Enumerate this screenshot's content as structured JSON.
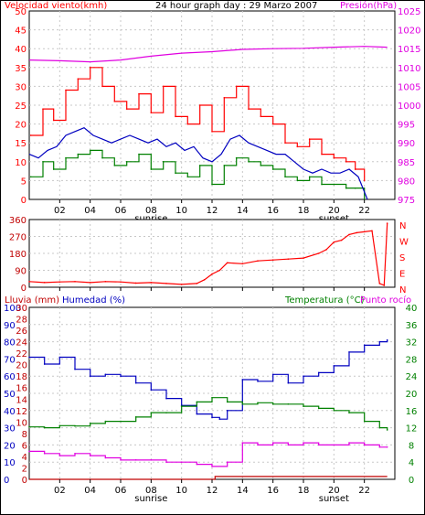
{
  "chart_data": [
    {
      "type": "line",
      "title": "24 hour graph day : 29 Marzo 2007",
      "ylabel_left": "Velocidad viento(kmh)",
      "ylabel_right": "Presión(hPa)",
      "x_ticks": [
        "02",
        "04",
        "06",
        "08",
        "10",
        "12",
        "14",
        "16",
        "18",
        "20",
        "22"
      ],
      "x_notes": [
        "sunrise",
        "sunset"
      ],
      "y_left_ticks": [
        "0",
        "5",
        "10",
        "15",
        "20",
        "25",
        "30",
        "35",
        "40",
        "45",
        "50"
      ],
      "y_right_ticks": [
        "975",
        "980",
        "985",
        "990",
        "995",
        "1000",
        "1005",
        "1010",
        "1015",
        "1020",
        "1025"
      ],
      "ylim_left": [
        0,
        50
      ],
      "ylim_right": [
        975,
        1025
      ],
      "colors": {
        "gust": "#ff0000",
        "average": "#008000",
        "direction_avg": "#0000c0",
        "pressure": "#e000e0"
      },
      "series": [
        {
          "name": "gust",
          "x": [
            0.1,
            0.9,
            1.6,
            2.4,
            3.2,
            4.0,
            4.8,
            5.6,
            6.4,
            7.2,
            8.0,
            8.8,
            9.6,
            10.4,
            11.2,
            12.0,
            12.8,
            13.6,
            14.4,
            15.2,
            16.0,
            16.8,
            17.6,
            18.4,
            19.2,
            20.0,
            20.8,
            21.4,
            22.0
          ],
          "y": [
            17,
            24,
            21,
            29,
            32,
            35,
            30,
            26,
            24,
            28,
            23,
            30,
            22,
            20,
            25,
            18,
            27,
            30,
            24,
            22,
            20,
            15,
            14,
            16,
            12,
            11,
            10,
            8,
            5
          ]
        },
        {
          "name": "average",
          "x": [
            0.1,
            0.9,
            1.6,
            2.4,
            3.2,
            4.0,
            4.8,
            5.6,
            6.4,
            7.2,
            8.0,
            8.8,
            9.6,
            10.4,
            11.2,
            12.0,
            12.8,
            13.6,
            14.4,
            15.2,
            16.0,
            16.8,
            17.6,
            18.4,
            19.2,
            20.0,
            20.8,
            21.4,
            22.0
          ],
          "y": [
            6,
            10,
            8,
            11,
            12,
            13,
            11,
            9,
            10,
            12,
            8,
            10,
            7,
            6,
            9,
            4,
            9,
            11,
            10,
            9,
            8,
            6,
            5,
            6,
            4,
            4,
            3,
            3,
            0
          ]
        },
        {
          "name": "wind_avg_line",
          "x": [
            0.0,
            0.6,
            1.2,
            1.8,
            2.4,
            3.0,
            3.6,
            4.2,
            4.8,
            5.4,
            6.0,
            6.6,
            7.2,
            7.8,
            8.4,
            9.0,
            9.6,
            10.2,
            10.8,
            11.4,
            12.0,
            12.6,
            13.2,
            13.8,
            14.4,
            15.0,
            15.6,
            16.2,
            16.8,
            17.4,
            18.0,
            18.6,
            19.2,
            19.8,
            20.4,
            21.0,
            21.6,
            22.2
          ],
          "y": [
            12,
            11,
            13,
            14,
            17,
            18,
            19,
            17,
            16,
            15,
            16,
            17,
            16,
            15,
            16,
            14,
            15,
            13,
            14,
            11,
            10,
            12,
            16,
            17,
            15,
            14,
            13,
            12,
            12,
            10,
            8,
            7,
            8,
            7,
            7,
            8,
            6,
            0
          ]
        },
        {
          "name": "pressure",
          "x": [
            0,
            2,
            4,
            6,
            8,
            10,
            12,
            14,
            16,
            18,
            20,
            22,
            23.5
          ],
          "y": [
            1012.0,
            1011.8,
            1011.5,
            1012.0,
            1013.0,
            1013.8,
            1014.2,
            1014.8,
            1015.0,
            1015.1,
            1015.4,
            1015.6,
            1015.4
          ]
        }
      ]
    },
    {
      "type": "line",
      "title": "",
      "ylabel_left": "",
      "y_left_ticks": [
        "0",
        "90",
        "180",
        "270",
        "360"
      ],
      "y_right_labels": [
        "N",
        "W",
        "S",
        "E",
        "N"
      ],
      "ylim_left": [
        0,
        360
      ],
      "series": [
        {
          "name": "direction",
          "x": [
            0,
            1,
            2,
            3,
            4,
            5,
            6,
            7,
            8,
            9,
            10,
            11,
            11.5,
            12,
            12.5,
            13,
            14,
            15,
            16,
            17,
            18,
            19,
            19.5,
            20,
            20.5,
            21,
            21.5,
            22,
            22.5,
            23,
            23.3,
            23.5
          ],
          "y": [
            30,
            25,
            28,
            30,
            25,
            30,
            28,
            22,
            25,
            20,
            15,
            20,
            40,
            70,
            90,
            130,
            125,
            140,
            145,
            150,
            155,
            180,
            200,
            240,
            250,
            280,
            290,
            295,
            300,
            20,
            10,
            340
          ]
        }
      ]
    },
    {
      "type": "line",
      "title": "",
      "ylabel_left": "Lluvia (mm)",
      "ylabel_left2": "Humedad (%)",
      "ylabel_right": "Temperatura (°C)",
      "ylabel_right2": "Punto rocío",
      "x_ticks": [
        "02",
        "04",
        "06",
        "08",
        "10",
        "12",
        "14",
        "16",
        "18",
        "20",
        "22"
      ],
      "x_notes": [
        "sunrise",
        "sunset"
      ],
      "y_left_ticks_rain": [
        "0",
        "2",
        "4",
        "6",
        "8",
        "10",
        "12",
        "14",
        "16",
        "18",
        "20",
        "22",
        "24",
        "26",
        "28",
        "30"
      ],
      "y_left_ticks_hum": [
        "0",
        "10",
        "20",
        "30",
        "40",
        "50",
        "60",
        "70",
        "80",
        "90",
        "100"
      ],
      "y_right_ticks": [
        "0",
        "4",
        "8",
        "12",
        "16",
        "20",
        "24",
        "28",
        "32",
        "36",
        "40"
      ],
      "ylim_humidity": [
        0,
        100
      ],
      "ylim_temperature": [
        0,
        40
      ],
      "series": [
        {
          "name": "humidity",
          "x": [
            0,
            1,
            2,
            3,
            4,
            5,
            6,
            7,
            8,
            9,
            10,
            11,
            12,
            12.5,
            13,
            14,
            15,
            16,
            17,
            18,
            19,
            20,
            21,
            22,
            23,
            23.5
          ],
          "y": [
            71,
            67,
            71,
            64,
            60,
            61,
            60,
            56,
            52,
            47,
            43,
            38,
            36,
            35,
            40,
            58,
            57,
            61,
            56,
            60,
            62,
            66,
            74,
            78,
            80,
            81
          ]
        },
        {
          "name": "temperature",
          "x": [
            0,
            1,
            2,
            3,
            4,
            5,
            6,
            7,
            8,
            9,
            10,
            11,
            12,
            13,
            14,
            15,
            16,
            17,
            18,
            19,
            20,
            21,
            22,
            23,
            23.5
          ],
          "y": [
            12.2,
            12.0,
            12.5,
            12.4,
            13.0,
            13.5,
            13.5,
            14.5,
            15.5,
            15.5,
            17.0,
            18.0,
            19.0,
            18.0,
            17.5,
            17.8,
            17.5,
            17.5,
            17.0,
            16.5,
            16.0,
            15.5,
            13.5,
            12.0,
            11.5
          ]
        },
        {
          "name": "dew_point",
          "x": [
            0,
            1,
            2,
            3,
            4,
            5,
            6,
            7,
            8,
            9,
            10,
            11,
            12,
            13,
            14,
            15,
            16,
            17,
            18,
            19,
            20,
            21,
            22,
            23,
            23.5
          ],
          "y": [
            6.5,
            6.0,
            5.5,
            6.0,
            5.5,
            5.0,
            4.5,
            4.5,
            4.5,
            4.0,
            4.0,
            3.5,
            3.0,
            4.0,
            8.5,
            8.0,
            8.5,
            8.0,
            8.5,
            8.0,
            8.0,
            8.5,
            8.0,
            7.5,
            7.5
          ]
        },
        {
          "name": "rain",
          "x": [
            0,
            12,
            12.2,
            23.5
          ],
          "y": [
            0,
            0,
            0.5,
            0.5
          ]
        }
      ]
    }
  ]
}
